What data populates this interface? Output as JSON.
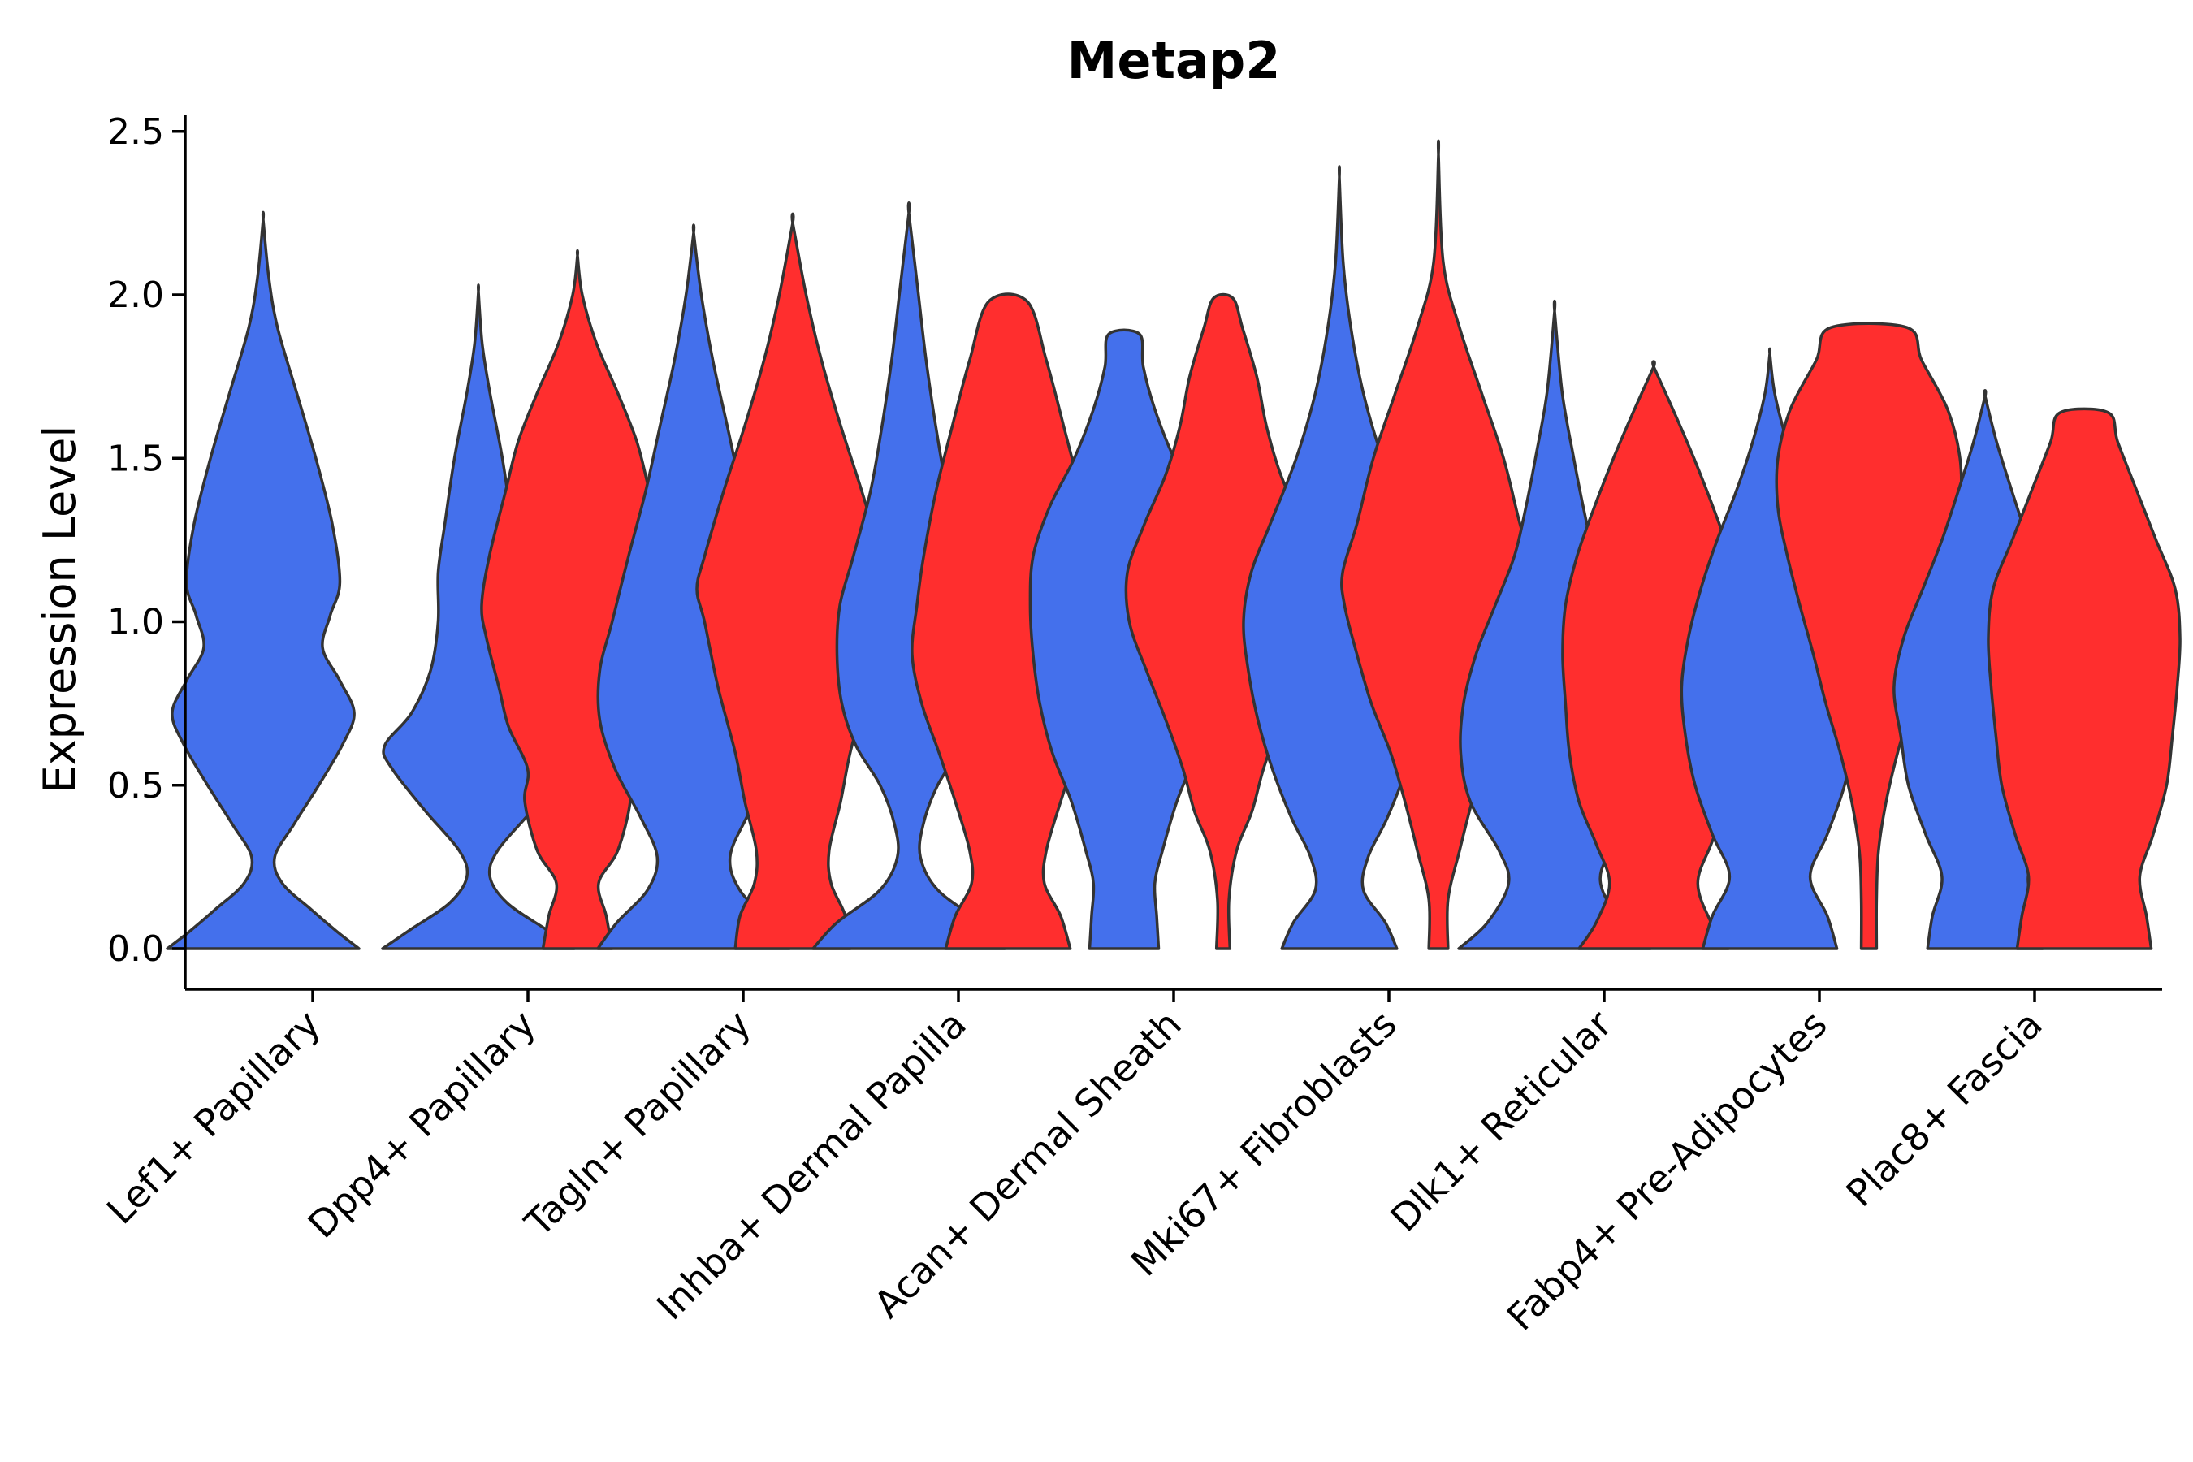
{
  "chart_data": {
    "type": "violin",
    "title": "Metap2",
    "xlabel": "",
    "ylabel": "Expression Level",
    "ylim": [
      -0.12,
      2.56
    ],
    "yticks": [
      0.0,
      0.5,
      1.0,
      1.5,
      2.0,
      2.5
    ],
    "ytick_labels": [
      "0.0",
      "0.5",
      "1.0",
      "1.5",
      "2.0",
      "2.5"
    ],
    "grid": false,
    "legend": "none",
    "colors": {
      "blue": "#4470ec",
      "red": "#ff2e2e",
      "outline": "#333333"
    },
    "categories": [
      "Lef1+ Papillary",
      "Dpp4+ Papillary",
      "Tagln+ Papillary",
      "Inhba+ Dermal Papilla",
      "Acan+ Dermal Sheath",
      "Mki67+ Fibroblasts",
      "Dlk1+ Reticular",
      "Fabp4+ Pre-Adipocytes",
      "Plac8+ Fascia"
    ],
    "violins": [
      {
        "category": "Lef1+ Papillary",
        "group": "blue",
        "max": 2.23,
        "profile": [
          [
            0.0,
            1.0
          ],
          [
            0.05,
            0.78
          ],
          [
            0.12,
            0.5
          ],
          [
            0.2,
            0.2
          ],
          [
            0.28,
            0.12
          ],
          [
            0.38,
            0.32
          ],
          [
            0.5,
            0.58
          ],
          [
            0.62,
            0.82
          ],
          [
            0.72,
            0.95
          ],
          [
            0.82,
            0.8
          ],
          [
            0.92,
            0.62
          ],
          [
            1.02,
            0.7
          ],
          [
            1.12,
            0.8
          ],
          [
            1.3,
            0.72
          ],
          [
            1.5,
            0.55
          ],
          [
            1.7,
            0.35
          ],
          [
            1.9,
            0.15
          ],
          [
            2.05,
            0.06
          ],
          [
            2.23,
            0.0
          ]
        ]
      },
      {
        "category": "Dpp4+ Papillary",
        "group": "blue",
        "max": 2.01,
        "profile": [
          [
            0.0,
            1.0
          ],
          [
            0.06,
            0.7
          ],
          [
            0.14,
            0.3
          ],
          [
            0.22,
            0.12
          ],
          [
            0.3,
            0.2
          ],
          [
            0.42,
            0.55
          ],
          [
            0.55,
            0.9
          ],
          [
            0.62,
            0.98
          ],
          [
            0.72,
            0.7
          ],
          [
            0.85,
            0.5
          ],
          [
            1.0,
            0.42
          ],
          [
            1.15,
            0.42
          ],
          [
            1.3,
            0.35
          ],
          [
            1.5,
            0.25
          ],
          [
            1.7,
            0.12
          ],
          [
            1.85,
            0.04
          ],
          [
            2.01,
            0.0
          ]
        ]
      },
      {
        "category": "Dpp4+ Papillary",
        "group": "red",
        "max": 2.12,
        "profile": [
          [
            0.0,
            0.36
          ],
          [
            0.1,
            0.3
          ],
          [
            0.2,
            0.22
          ],
          [
            0.3,
            0.42
          ],
          [
            0.45,
            0.55
          ],
          [
            0.55,
            0.52
          ],
          [
            0.68,
            0.72
          ],
          [
            0.8,
            0.82
          ],
          [
            0.95,
            0.95
          ],
          [
            1.05,
            1.0
          ],
          [
            1.2,
            0.92
          ],
          [
            1.4,
            0.75
          ],
          [
            1.55,
            0.62
          ],
          [
            1.7,
            0.42
          ],
          [
            1.85,
            0.2
          ],
          [
            2.0,
            0.05
          ],
          [
            2.12,
            0.0
          ]
        ]
      },
      {
        "category": "Tagln+ Papillary",
        "group": "blue",
        "max": 2.19,
        "profile": [
          [
            0.0,
            1.0
          ],
          [
            0.08,
            0.8
          ],
          [
            0.18,
            0.48
          ],
          [
            0.28,
            0.38
          ],
          [
            0.4,
            0.55
          ],
          [
            0.55,
            0.82
          ],
          [
            0.7,
            0.98
          ],
          [
            0.85,
            0.98
          ],
          [
            1.0,
            0.85
          ],
          [
            1.2,
            0.68
          ],
          [
            1.4,
            0.5
          ],
          [
            1.6,
            0.35
          ],
          [
            1.8,
            0.2
          ],
          [
            2.0,
            0.08
          ],
          [
            2.19,
            0.0
          ]
        ]
      },
      {
        "category": "Tagln+ Papillary",
        "group": "red",
        "max": 2.22,
        "profile": [
          [
            0.0,
            0.6
          ],
          [
            0.1,
            0.55
          ],
          [
            0.2,
            0.4
          ],
          [
            0.3,
            0.38
          ],
          [
            0.45,
            0.5
          ],
          [
            0.6,
            0.6
          ],
          [
            0.8,
            0.78
          ],
          [
            1.0,
            0.92
          ],
          [
            1.1,
            1.0
          ],
          [
            1.2,
            0.92
          ],
          [
            1.4,
            0.72
          ],
          [
            1.6,
            0.5
          ],
          [
            1.8,
            0.3
          ],
          [
            2.0,
            0.14
          ],
          [
            2.22,
            0.0
          ]
        ]
      },
      {
        "category": "Inhba+ Dermal Papilla",
        "group": "blue",
        "max": 2.25,
        "profile": [
          [
            0.0,
            1.0
          ],
          [
            0.08,
            0.75
          ],
          [
            0.18,
            0.3
          ],
          [
            0.28,
            0.12
          ],
          [
            0.38,
            0.15
          ],
          [
            0.5,
            0.3
          ],
          [
            0.62,
            0.55
          ],
          [
            0.75,
            0.7
          ],
          [
            0.9,
            0.75
          ],
          [
            1.05,
            0.72
          ],
          [
            1.2,
            0.58
          ],
          [
            1.4,
            0.4
          ],
          [
            1.6,
            0.28
          ],
          [
            1.8,
            0.18
          ],
          [
            2.0,
            0.1
          ],
          [
            2.25,
            0.0
          ]
        ]
      },
      {
        "category": "Inhba+ Dermal Papilla",
        "group": "red",
        "max": 1.98,
        "profile": [
          [
            0.0,
            0.65
          ],
          [
            0.1,
            0.55
          ],
          [
            0.2,
            0.38
          ],
          [
            0.3,
            0.4
          ],
          [
            0.45,
            0.55
          ],
          [
            0.6,
            0.72
          ],
          [
            0.75,
            0.9
          ],
          [
            0.9,
            1.0
          ],
          [
            1.05,
            0.95
          ],
          [
            1.2,
            0.88
          ],
          [
            1.4,
            0.75
          ],
          [
            1.6,
            0.58
          ],
          [
            1.8,
            0.4
          ],
          [
            1.98,
            0.2
          ]
        ]
      },
      {
        "category": "Acan+ Dermal Sheath",
        "group": "blue",
        "max": 1.88,
        "profile": [
          [
            0.0,
            0.36
          ],
          [
            0.1,
            0.34
          ],
          [
            0.2,
            0.32
          ],
          [
            0.3,
            0.4
          ],
          [
            0.45,
            0.55
          ],
          [
            0.6,
            0.75
          ],
          [
            0.75,
            0.88
          ],
          [
            0.9,
            0.95
          ],
          [
            1.05,
            0.98
          ],
          [
            1.2,
            0.95
          ],
          [
            1.35,
            0.78
          ],
          [
            1.5,
            0.52
          ],
          [
            1.65,
            0.32
          ],
          [
            1.78,
            0.2
          ],
          [
            1.88,
            0.16
          ]
        ]
      },
      {
        "category": "Acan+ Dermal Sheath",
        "group": "red",
        "max": 1.99,
        "profile": [
          [
            0.0,
            0.07
          ],
          [
            0.15,
            0.06
          ],
          [
            0.3,
            0.14
          ],
          [
            0.42,
            0.3
          ],
          [
            0.55,
            0.42
          ],
          [
            0.7,
            0.6
          ],
          [
            0.85,
            0.8
          ],
          [
            1.0,
            0.98
          ],
          [
            1.15,
            1.0
          ],
          [
            1.3,
            0.82
          ],
          [
            1.45,
            0.6
          ],
          [
            1.6,
            0.45
          ],
          [
            1.75,
            0.35
          ],
          [
            1.9,
            0.2
          ],
          [
            1.99,
            0.1
          ]
        ]
      },
      {
        "category": "Mki67+ Fibroblasts",
        "group": "blue",
        "max": 2.36,
        "profile": [
          [
            0.0,
            0.6
          ],
          [
            0.08,
            0.48
          ],
          [
            0.18,
            0.25
          ],
          [
            0.28,
            0.3
          ],
          [
            0.4,
            0.5
          ],
          [
            0.55,
            0.7
          ],
          [
            0.7,
            0.85
          ],
          [
            0.85,
            0.95
          ],
          [
            1.0,
            1.0
          ],
          [
            1.15,
            0.92
          ],
          [
            1.3,
            0.72
          ],
          [
            1.5,
            0.45
          ],
          [
            1.7,
            0.25
          ],
          [
            1.9,
            0.12
          ],
          [
            2.1,
            0.04
          ],
          [
            2.36,
            0.0
          ]
        ]
      },
      {
        "category": "Mki67+ Fibroblasts",
        "group": "red",
        "max": 2.43,
        "profile": [
          [
            0.0,
            0.1
          ],
          [
            0.15,
            0.1
          ],
          [
            0.3,
            0.22
          ],
          [
            0.45,
            0.35
          ],
          [
            0.6,
            0.5
          ],
          [
            0.75,
            0.7
          ],
          [
            0.9,
            0.85
          ],
          [
            1.05,
            0.98
          ],
          [
            1.15,
            1.0
          ],
          [
            1.3,
            0.85
          ],
          [
            1.5,
            0.68
          ],
          [
            1.7,
            0.45
          ],
          [
            1.9,
            0.22
          ],
          [
            2.1,
            0.05
          ],
          [
            2.43,
            0.0
          ]
        ]
      },
      {
        "category": "Dlk1+ Reticular",
        "group": "blue",
        "max": 1.95,
        "profile": [
          [
            0.0,
            1.0
          ],
          [
            0.08,
            0.7
          ],
          [
            0.2,
            0.48
          ],
          [
            0.3,
            0.58
          ],
          [
            0.45,
            0.88
          ],
          [
            0.6,
            0.98
          ],
          [
            0.75,
            0.95
          ],
          [
            0.9,
            0.82
          ],
          [
            1.05,
            0.62
          ],
          [
            1.2,
            0.42
          ],
          [
            1.35,
            0.3
          ],
          [
            1.5,
            0.2
          ],
          [
            1.7,
            0.08
          ],
          [
            1.95,
            0.0
          ]
        ]
      },
      {
        "category": "Dlk1+ Reticular",
        "group": "red",
        "max": 1.78,
        "profile": [
          [
            0.0,
            0.78
          ],
          [
            0.08,
            0.6
          ],
          [
            0.2,
            0.46
          ],
          [
            0.32,
            0.6
          ],
          [
            0.45,
            0.78
          ],
          [
            0.6,
            0.88
          ],
          [
            0.75,
            0.92
          ],
          [
            0.9,
            0.95
          ],
          [
            1.05,
            0.92
          ],
          [
            1.2,
            0.8
          ],
          [
            1.35,
            0.62
          ],
          [
            1.5,
            0.42
          ],
          [
            1.65,
            0.2
          ],
          [
            1.78,
            0.0
          ]
        ]
      },
      {
        "category": "Fabp4+ Pre-Adipocytes",
        "group": "blue",
        "max": 1.82,
        "profile": [
          [
            0.0,
            0.7
          ],
          [
            0.1,
            0.6
          ],
          [
            0.22,
            0.42
          ],
          [
            0.35,
            0.6
          ],
          [
            0.5,
            0.78
          ],
          [
            0.65,
            0.88
          ],
          [
            0.8,
            0.92
          ],
          [
            0.95,
            0.85
          ],
          [
            1.1,
            0.72
          ],
          [
            1.25,
            0.55
          ],
          [
            1.4,
            0.35
          ],
          [
            1.55,
            0.18
          ],
          [
            1.7,
            0.05
          ],
          [
            1.82,
            0.0
          ]
        ]
      },
      {
        "category": "Fabp4+ Pre-Adipocytes",
        "group": "red",
        "max": 1.9,
        "profile": [
          [
            0.0,
            0.08
          ],
          [
            0.15,
            0.08
          ],
          [
            0.3,
            0.1
          ],
          [
            0.45,
            0.18
          ],
          [
            0.6,
            0.3
          ],
          [
            0.75,
            0.45
          ],
          [
            0.9,
            0.58
          ],
          [
            1.05,
            0.72
          ],
          [
            1.2,
            0.85
          ],
          [
            1.35,
            0.95
          ],
          [
            1.5,
            0.95
          ],
          [
            1.65,
            0.82
          ],
          [
            1.8,
            0.55
          ],
          [
            1.9,
            0.4
          ]
        ]
      },
      {
        "category": "Plac8+ Fascia",
        "group": "blue",
        "max": 1.69,
        "profile": [
          [
            0.0,
            0.6
          ],
          [
            0.1,
            0.55
          ],
          [
            0.22,
            0.45
          ],
          [
            0.35,
            0.62
          ],
          [
            0.5,
            0.8
          ],
          [
            0.65,
            0.88
          ],
          [
            0.8,
            0.95
          ],
          [
            0.95,
            0.85
          ],
          [
            1.1,
            0.65
          ],
          [
            1.25,
            0.45
          ],
          [
            1.4,
            0.28
          ],
          [
            1.55,
            0.12
          ],
          [
            1.69,
            0.0
          ]
        ]
      },
      {
        "category": "Plac8+ Fascia",
        "group": "red",
        "max": 1.64,
        "profile": [
          [
            0.0,
            0.7
          ],
          [
            0.1,
            0.65
          ],
          [
            0.22,
            0.58
          ],
          [
            0.35,
            0.72
          ],
          [
            0.5,
            0.86
          ],
          [
            0.65,
            0.92
          ],
          [
            0.8,
            0.97
          ],
          [
            0.95,
            1.0
          ],
          [
            1.1,
            0.95
          ],
          [
            1.25,
            0.75
          ],
          [
            1.4,
            0.55
          ],
          [
            1.55,
            0.35
          ],
          [
            1.64,
            0.25
          ]
        ]
      }
    ]
  }
}
